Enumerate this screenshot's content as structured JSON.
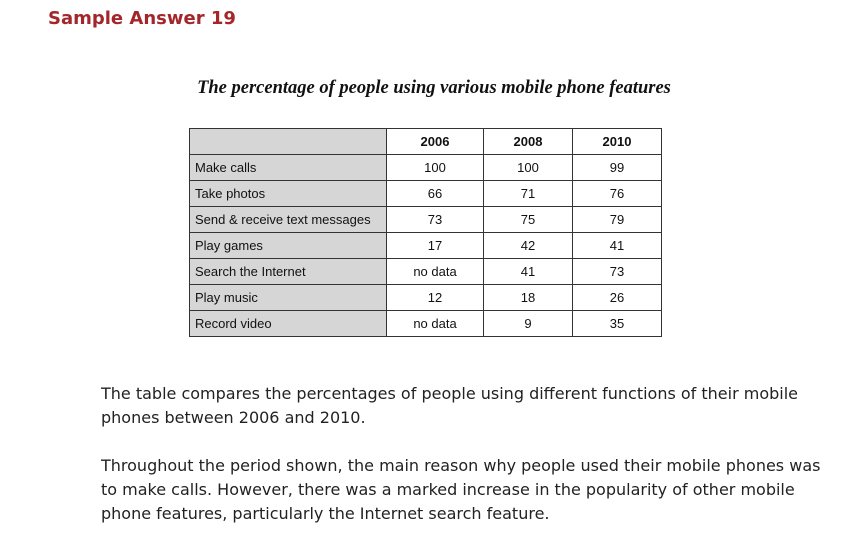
{
  "heading": "Sample Answer 19",
  "table_title": "The percentage of people using various mobile phone features",
  "table": {
    "columns": [
      "",
      "2006",
      "2008",
      "2010"
    ],
    "rows": [
      {
        "label": "Make calls",
        "values": [
          "100",
          "100",
          "99"
        ]
      },
      {
        "label": "Take photos",
        "values": [
          "66",
          "71",
          "76"
        ]
      },
      {
        "label": "Send & receive text messages",
        "values": [
          "73",
          "75",
          "79"
        ]
      },
      {
        "label": "Play games",
        "values": [
          "17",
          "42",
          "41"
        ]
      },
      {
        "label": "Search the Internet",
        "values": [
          "no data",
          "41",
          "73"
        ]
      },
      {
        "label": "Play music",
        "values": [
          "12",
          "18",
          "26"
        ]
      },
      {
        "label": "Record video",
        "values": [
          "no data",
          "9",
          "35"
        ]
      }
    ]
  },
  "paragraphs": [
    "The table compares the percentages of people using different functions of their mobile phones between 2006 and 2010.",
    "Throughout the period shown, the main reason why people used their mobile phones was to make calls. However, there was a marked increase in the popularity of other mobile phone features, particularly the Internet search feature."
  ],
  "colors": {
    "heading": "#a3262a",
    "row_label_bg": "#d6d6d6"
  }
}
